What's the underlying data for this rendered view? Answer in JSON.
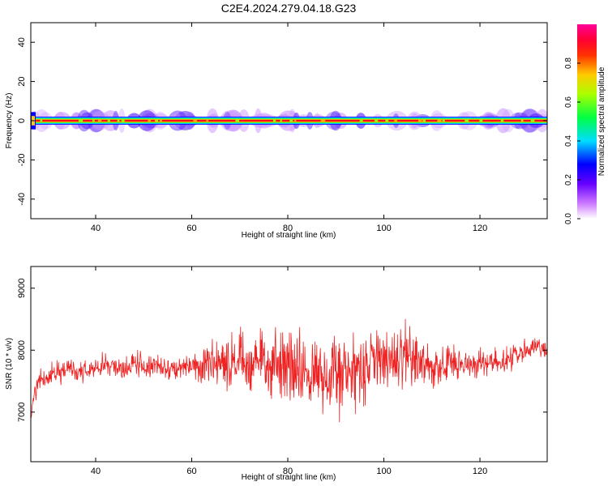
{
  "title": "C2E4.2024.279.04.18.G23",
  "colors": {
    "signal": "#ee2222",
    "axis": "#000000"
  },
  "chart_data": [
    {
      "type": "heatmap",
      "xlabel": "Height of straight line (km)",
      "ylabel": "Frequency (Hz)",
      "xlim": [
        26.5,
        134
      ],
      "ylim": [
        -50,
        50
      ],
      "x_ticks": [
        40,
        60,
        80,
        100,
        120
      ],
      "y_ticks": [
        -40,
        -20,
        0,
        20,
        40
      ],
      "x_tick_labels": [
        "40",
        "60",
        "80",
        "100",
        "120"
      ],
      "y_tick_labels": [
        "-40",
        "-20",
        "0",
        "20",
        "40"
      ],
      "band_center_hz": 0,
      "band_halfwidth_hz": 2,
      "peak_amplitude": 1.0,
      "colorbar": {
        "label": "Normalized spectral amplitude",
        "range": [
          0,
          1
        ],
        "ticks": [
          0.0,
          0.2,
          0.4,
          0.6,
          0.8
        ],
        "tick_labels": [
          "0.0",
          "0.2",
          "0.4",
          "0.6",
          "0.8"
        ]
      }
    },
    {
      "type": "line",
      "xlabel": "Height of straight line (km)",
      "ylabel": "SNR (10 * v/v)",
      "xlim": [
        26.5,
        134
      ],
      "ylim": [
        6200,
        9350
      ],
      "x_ticks": [
        40,
        60,
        80,
        100,
        120
      ],
      "y_ticks": [
        7000,
        8000,
        9000
      ],
      "x_tick_labels": [
        "40",
        "60",
        "80",
        "100",
        "120"
      ],
      "y_tick_labels": [
        "7000",
        "8000",
        "9000"
      ],
      "series": [
        {
          "points": [
            [
              26.5,
              7050
            ],
            [
              28,
              7500
            ],
            [
              30,
              7550
            ],
            [
              32,
              7650
            ],
            [
              34,
              7700
            ],
            [
              36,
              7650
            ],
            [
              38,
              7650
            ],
            [
              40,
              7700
            ],
            [
              42,
              7750
            ],
            [
              44,
              7750
            ],
            [
              46,
              7700
            ],
            [
              48,
              7800
            ],
            [
              50,
              7750
            ],
            [
              52,
              7700
            ],
            [
              54,
              7750
            ],
            [
              56,
              7700
            ],
            [
              58,
              7700
            ],
            [
              60,
              7750
            ],
            [
              62,
              7700
            ],
            [
              64,
              7800
            ],
            [
              66,
              7850
            ],
            [
              68,
              7750
            ],
            [
              70,
              7850
            ],
            [
              72,
              7750
            ],
            [
              74,
              7800
            ],
            [
              76,
              7850
            ],
            [
              78,
              7700
            ],
            [
              80,
              7750
            ],
            [
              82,
              7650
            ],
            [
              84,
              7600
            ],
            [
              86,
              7600
            ],
            [
              88,
              7550
            ],
            [
              90,
              7650
            ],
            [
              92,
              7600
            ],
            [
              94,
              7600
            ],
            [
              96,
              7700
            ],
            [
              98,
              7800
            ],
            [
              100,
              7850
            ],
            [
              102,
              7850
            ],
            [
              104,
              7900
            ],
            [
              106,
              7850
            ],
            [
              108,
              7800
            ],
            [
              110,
              7750
            ],
            [
              112,
              7750
            ],
            [
              114,
              7800
            ],
            [
              116,
              7800
            ],
            [
              118,
              7750
            ],
            [
              120,
              7800
            ],
            [
              122,
              7800
            ],
            [
              124,
              7850
            ],
            [
              126,
              7850
            ],
            [
              128,
              7950
            ],
            [
              130,
              8000
            ],
            [
              132,
              8050
            ],
            [
              134,
              8000
            ]
          ],
          "noise_amplitude": [
            [
              26.5,
              300
            ],
            [
              40,
              250
            ],
            [
              60,
              300
            ],
            [
              66,
              600
            ],
            [
              72,
              700
            ],
            [
              80,
              900
            ],
            [
              90,
              900
            ],
            [
              96,
              800
            ],
            [
              104,
              700
            ],
            [
              110,
              500
            ],
            [
              120,
              300
            ],
            [
              134,
              250
            ]
          ]
        }
      ]
    }
  ]
}
